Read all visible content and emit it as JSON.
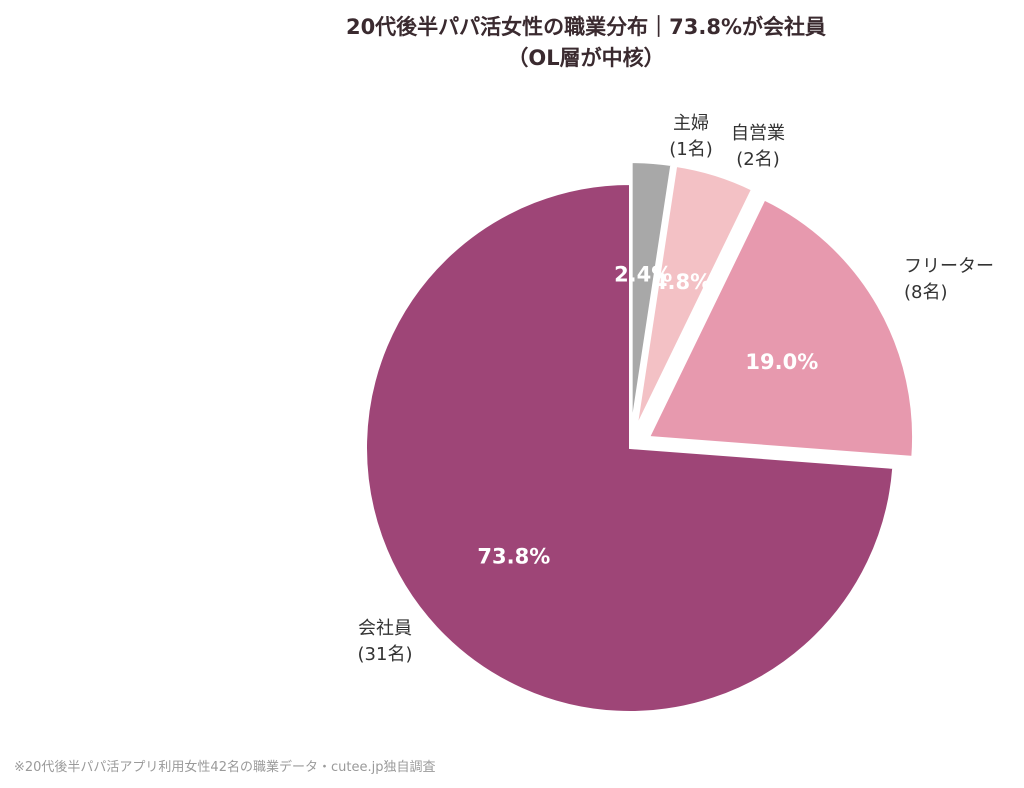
{
  "chart_data": {
    "type": "pie",
    "title": "20代後半パパ活女性の職業分布｜73.8%が会社員",
    "subtitle": "（OL層が中核）",
    "slices": [
      {
        "label": "会社員",
        "count_label": "(31名)",
        "value": 73.8,
        "pct_label": "73.8%",
        "color": "#9e4577"
      },
      {
        "label": "フリーター",
        "count_label": "(8名)",
        "value": 19.0,
        "pct_label": "19.0%",
        "color": "#e799ae"
      },
      {
        "label": "自営業",
        "count_label": "(2名)",
        "value": 4.8,
        "pct_label": "4.8%",
        "color": "#f3c1c5"
      },
      {
        "label": "主婦",
        "count_label": "(1名)",
        "value": 2.4,
        "pct_label": "2.4%",
        "color": "#a8a8a8"
      }
    ],
    "legend": "none"
  },
  "footnote": "※20代後半パパ活アプリ利用女性42名の職業データ・cutee.jp独自調査"
}
